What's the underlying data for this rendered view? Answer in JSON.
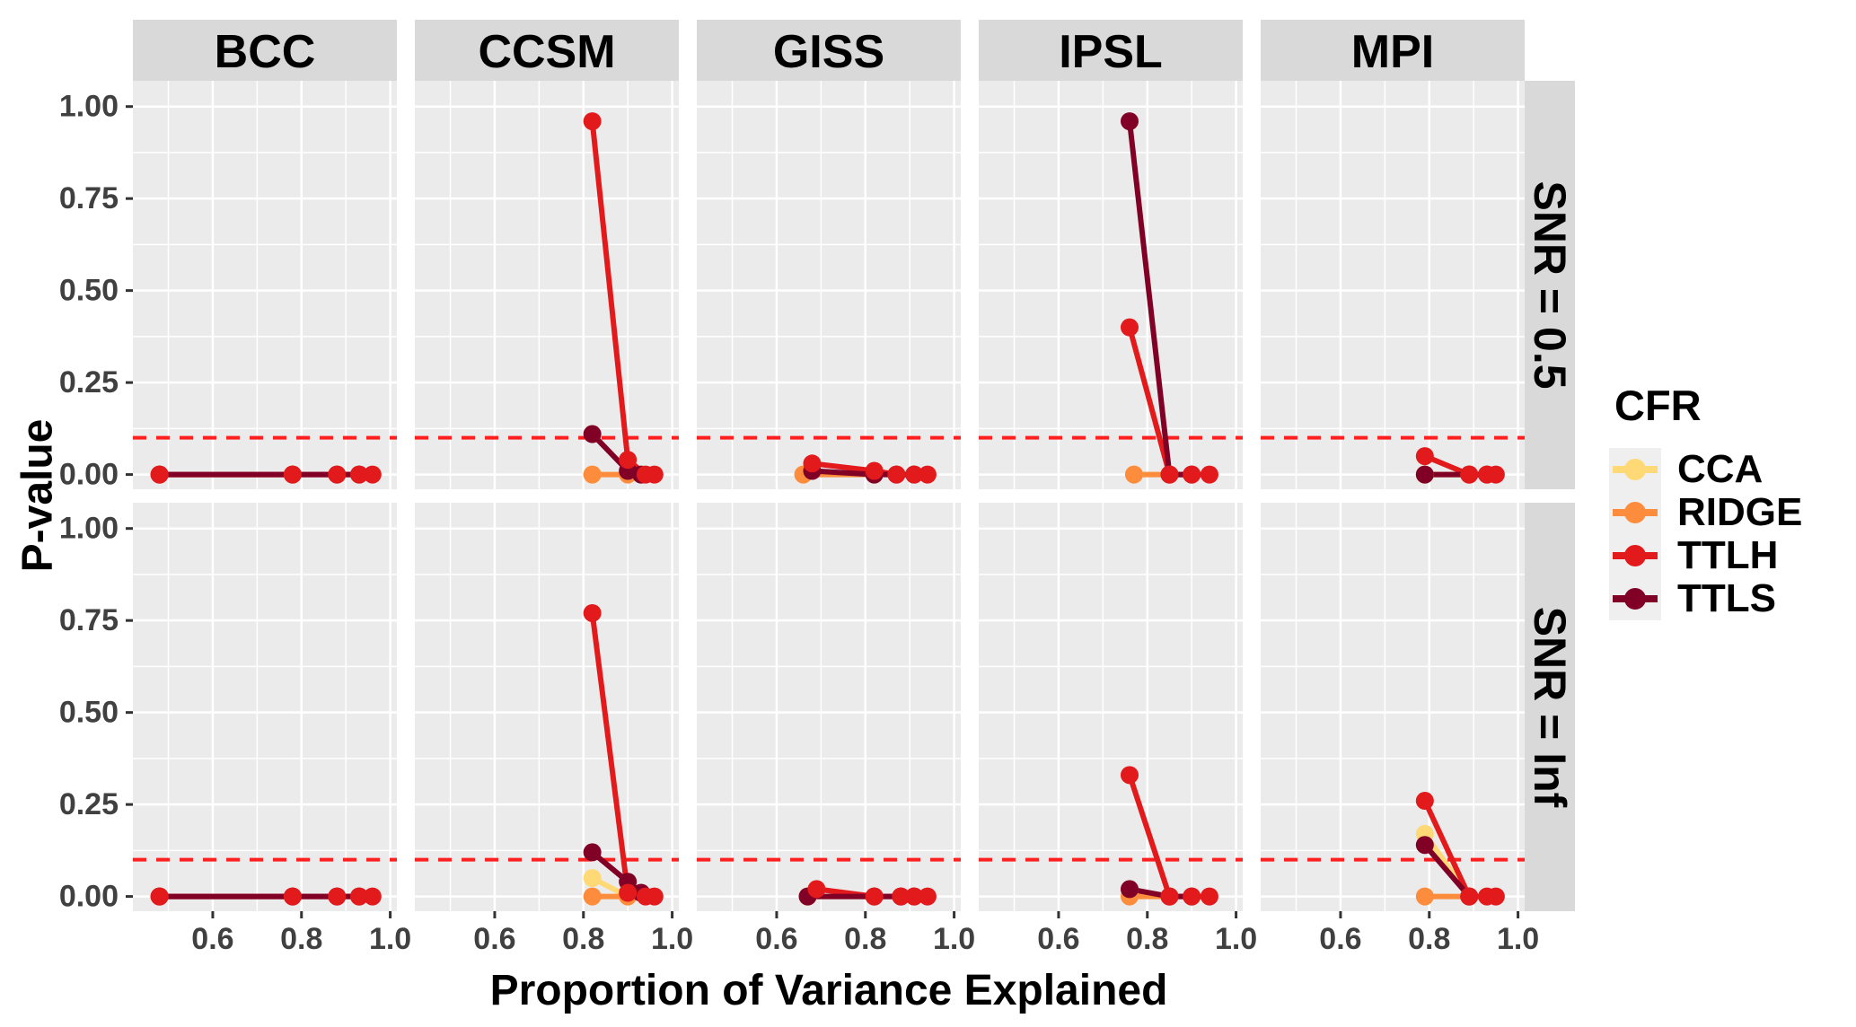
{
  "figure": {
    "y_axis_title": "P-value",
    "x_axis_title": "Proportion of Variance Explained",
    "legend_title": "CFR"
  },
  "chart_data": {
    "type": "line",
    "title": "",
    "xlabel": "Proportion of Variance Explained",
    "ylabel": "P-value",
    "facet_columns": [
      "BCC",
      "CCSM",
      "GISS",
      "IPSL",
      "MPI"
    ],
    "facet_rows": [
      "SNR = 0.5",
      "SNR = Inf"
    ],
    "x_ticks": [
      0.6,
      0.8,
      1.0
    ],
    "x_tick_labels": [
      "0.6",
      "0.8",
      "1.0"
    ],
    "x_minor_ticks": [
      0.5,
      0.7,
      0.9
    ],
    "y_ticks": [
      0.0,
      0.25,
      0.5,
      0.75,
      1.0
    ],
    "y_tick_labels": [
      "0.00",
      "0.25",
      "0.50",
      "0.75",
      "1.00"
    ],
    "y_minor_ticks": [
      0.125,
      0.375,
      0.625,
      0.875
    ],
    "x_range": [
      0.42,
      1.015
    ],
    "y_range": [
      -0.04,
      1.07
    ],
    "grid": true,
    "threshold_line": {
      "y": 0.1,
      "style": "dashed",
      "color": "#ff1f1f"
    },
    "colors": {
      "panel_background": "#ebebeb",
      "strip_background": "#d9d9d9",
      "grid": "#ffffff",
      "axis_text": "#404040",
      "strip_text": "#000000"
    },
    "legend": {
      "title": "CFR",
      "position": "right",
      "entries": [
        {
          "label": "CCA",
          "color": "#FED976"
        },
        {
          "label": "RIDGE",
          "color": "#FD8D3C"
        },
        {
          "label": "TTLH",
          "color": "#E31A1C"
        },
        {
          "label": "TTLS",
          "color": "#800026"
        }
      ]
    },
    "line_draw_order": [
      "CCA",
      "RIDGE",
      "TTLH",
      "TTLS"
    ],
    "point_draw_order": [
      "CCA",
      "RIDGE",
      "TTLS",
      "TTLH"
    ],
    "panels": [
      {
        "row": "SNR = 0.5",
        "col": "BCC",
        "series": {
          "CCA": [
            [
              0.48,
              0
            ]
          ],
          "RIDGE": [
            [
              0.48,
              0
            ],
            [
              0.78,
              0
            ]
          ],
          "TTLH": [
            [
              0.48,
              0
            ],
            [
              0.78,
              0
            ],
            [
              0.88,
              0
            ],
            [
              0.93,
              0
            ],
            [
              0.96,
              0
            ]
          ],
          "TTLS": [
            [
              0.48,
              0
            ],
            [
              0.78,
              0
            ],
            [
              0.88,
              0
            ],
            [
              0.93,
              0
            ]
          ]
        }
      },
      {
        "row": "SNR = 0.5",
        "col": "CCSM",
        "series": {
          "CCA": [
            [
              0.82,
              0
            ]
          ],
          "RIDGE": [
            [
              0.82,
              0
            ],
            [
              0.9,
              0
            ]
          ],
          "TTLH": [
            [
              0.82,
              0.96
            ],
            [
              0.9,
              0.04
            ],
            [
              0.94,
              0
            ],
            [
              0.96,
              0
            ]
          ],
          "TTLS": [
            [
              0.82,
              0.11
            ],
            [
              0.9,
              0.01
            ],
            [
              0.93,
              0
            ]
          ]
        }
      },
      {
        "row": "SNR = 0.5",
        "col": "GISS",
        "series": {
          "CCA": [
            [
              0.66,
              0
            ]
          ],
          "RIDGE": [
            [
              0.66,
              0
            ],
            [
              0.82,
              0
            ]
          ],
          "TTLH": [
            [
              0.68,
              0.03
            ],
            [
              0.82,
              0.01
            ],
            [
              0.87,
              0
            ],
            [
              0.91,
              0
            ],
            [
              0.94,
              0
            ]
          ],
          "TTLS": [
            [
              0.68,
              0.01
            ],
            [
              0.82,
              0
            ],
            [
              0.87,
              0
            ],
            [
              0.91,
              0
            ]
          ]
        }
      },
      {
        "row": "SNR = 0.5",
        "col": "IPSL",
        "series": {
          "CCA": [
            [
              0.77,
              0
            ]
          ],
          "RIDGE": [
            [
              0.77,
              0
            ],
            [
              0.85,
              0
            ]
          ],
          "TTLH": [
            [
              0.76,
              0.4
            ],
            [
              0.85,
              0
            ],
            [
              0.9,
              0
            ],
            [
              0.94,
              0
            ]
          ],
          "TTLS": [
            [
              0.76,
              0.96
            ],
            [
              0.85,
              0
            ],
            [
              0.9,
              0
            ]
          ]
        }
      },
      {
        "row": "SNR = 0.5",
        "col": "MPI",
        "series": {
          "CCA": [
            [
              0.79,
              0
            ]
          ],
          "RIDGE": [
            [
              0.79,
              0
            ],
            [
              0.89,
              0
            ]
          ],
          "TTLH": [
            [
              0.79,
              0.05
            ],
            [
              0.89,
              0
            ],
            [
              0.93,
              0
            ],
            [
              0.95,
              0
            ]
          ],
          "TTLS": [
            [
              0.79,
              0
            ],
            [
              0.89,
              0
            ],
            [
              0.93,
              0
            ]
          ]
        }
      },
      {
        "row": "SNR = Inf",
        "col": "BCC",
        "series": {
          "CCA": [
            [
              0.48,
              0
            ]
          ],
          "RIDGE": [
            [
              0.48,
              0
            ],
            [
              0.78,
              0
            ]
          ],
          "TTLH": [
            [
              0.48,
              0
            ],
            [
              0.78,
              0
            ],
            [
              0.88,
              0
            ],
            [
              0.93,
              0
            ],
            [
              0.96,
              0
            ]
          ],
          "TTLS": [
            [
              0.48,
              0
            ],
            [
              0.78,
              0
            ],
            [
              0.88,
              0
            ],
            [
              0.93,
              0
            ]
          ]
        }
      },
      {
        "row": "SNR = Inf",
        "col": "CCSM",
        "series": {
          "CCA": [
            [
              0.82,
              0.05
            ],
            [
              0.9,
              0
            ]
          ],
          "RIDGE": [
            [
              0.82,
              0
            ],
            [
              0.9,
              0
            ]
          ],
          "TTLH": [
            [
              0.82,
              0.77
            ],
            [
              0.9,
              0.01
            ],
            [
              0.94,
              0
            ],
            [
              0.96,
              0
            ]
          ],
          "TTLS": [
            [
              0.82,
              0.12
            ],
            [
              0.9,
              0.04
            ],
            [
              0.93,
              0.01
            ]
          ]
        }
      },
      {
        "row": "SNR = Inf",
        "col": "GISS",
        "series": {
          "CCA": [
            [
              0.67,
              0
            ]
          ],
          "RIDGE": [
            [
              0.67,
              0
            ],
            [
              0.82,
              0
            ]
          ],
          "TTLH": [
            [
              0.69,
              0.02
            ],
            [
              0.82,
              0
            ],
            [
              0.88,
              0
            ],
            [
              0.91,
              0
            ],
            [
              0.94,
              0
            ]
          ],
          "TTLS": [
            [
              0.67,
              0
            ],
            [
              0.82,
              0
            ],
            [
              0.88,
              0
            ],
            [
              0.91,
              0
            ]
          ]
        }
      },
      {
        "row": "SNR = Inf",
        "col": "IPSL",
        "series": {
          "CCA": [
            [
              0.76,
              0.02
            ]
          ],
          "RIDGE": [
            [
              0.76,
              0
            ],
            [
              0.85,
              0
            ]
          ],
          "TTLH": [
            [
              0.76,
              0.33
            ],
            [
              0.85,
              0
            ],
            [
              0.9,
              0
            ],
            [
              0.94,
              0
            ]
          ],
          "TTLS": [
            [
              0.76,
              0.02
            ],
            [
              0.85,
              0
            ],
            [
              0.9,
              0
            ]
          ]
        }
      },
      {
        "row": "SNR = Inf",
        "col": "MPI",
        "series": {
          "CCA": [
            [
              0.79,
              0.17
            ],
            [
              0.89,
              0
            ]
          ],
          "RIDGE": [
            [
              0.79,
              0
            ],
            [
              0.89,
              0
            ]
          ],
          "TTLH": [
            [
              0.79,
              0.26
            ],
            [
              0.89,
              0
            ],
            [
              0.93,
              0
            ],
            [
              0.95,
              0
            ]
          ],
          "TTLS": [
            [
              0.79,
              0.14
            ],
            [
              0.89,
              0
            ]
          ]
        }
      }
    ]
  }
}
